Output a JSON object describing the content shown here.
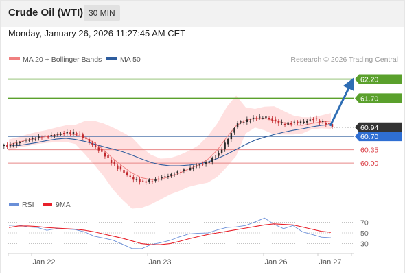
{
  "header": {
    "title": "Crude Oil (WTI)",
    "timeframe": "30 MIN"
  },
  "datetime": "Monday, January 26, 2026 11:27:45 AM CET",
  "legend": {
    "bollinger": "MA 20 + Bollinger Bands",
    "ma50": "MA 50",
    "copyright": "Research © 2026 Trading Central"
  },
  "rsi_legend": {
    "rsi": "RSI",
    "ma": "9MA"
  },
  "colors": {
    "level_resistance": "#5aa02c",
    "level_support": "#e88787",
    "current_price": "#333333",
    "ma50": "#2e5d9e",
    "bollinger_band": "#ffd6d6",
    "ma20": "#f08080",
    "candle_up": "#2b2b2b",
    "candle_down": "#c0282d",
    "rsi": "#6a8fd8",
    "rsi_ma": "#e8202a",
    "arrow": "#2e6db4"
  },
  "chart_data": [
    {
      "type": "candlestick",
      "x_labels": [
        "Jan 22",
        "Jan 23",
        "Jan 26",
        "Jan 27"
      ],
      "y_range": [
        59.25,
        62.55
      ],
      "levels": [
        {
          "value": 62.2,
          "label": "62.20",
          "kind": "resistance"
        },
        {
          "value": 61.7,
          "label": "61.70",
          "kind": "resistance"
        },
        {
          "value": 60.94,
          "label": "60.94",
          "kind": "current"
        },
        {
          "value": 60.7,
          "label": "60.70",
          "kind": "support-major"
        },
        {
          "value": 60.35,
          "label": "60.35",
          "kind": "support"
        },
        {
          "value": 60.0,
          "label": "60.00",
          "kind": "support"
        }
      ],
      "series": [
        {
          "name": "MA 20 + Bollinger Bands",
          "values": [
            60.48,
            60.55,
            60.61,
            60.66,
            60.7,
            60.74,
            60.77,
            60.75,
            60.67,
            60.54,
            60.35,
            60.12,
            59.92,
            59.74,
            59.62,
            59.57,
            59.58,
            59.65,
            59.74,
            59.85,
            59.95,
            60.1,
            60.34,
            60.68,
            60.98,
            61.12,
            61.17,
            61.17,
            61.12,
            61.06,
            61.0,
            60.99,
            61.04,
            61.08,
            61.1
          ]
        },
        {
          "name": "MA 50",
          "values": [
            60.48,
            60.46,
            60.5,
            60.54,
            60.59,
            60.63,
            60.65,
            60.62,
            60.57,
            60.5,
            60.43,
            60.37,
            60.3,
            60.21,
            60.11,
            60.02,
            59.96,
            59.93,
            59.93,
            59.95,
            59.98,
            60.03,
            60.12,
            60.23,
            60.36,
            60.49,
            60.6,
            60.68,
            60.75,
            60.81,
            60.86,
            60.9,
            60.95,
            60.99,
            61.01
          ]
        }
      ],
      "bollinger_upper": [
        60.62,
        60.68,
        60.76,
        60.82,
        60.87,
        60.93,
        60.99,
        61.0,
        61.1,
        61.11,
        61.04,
        60.93,
        60.81,
        60.67,
        60.41,
        60.22,
        60.12,
        60.13,
        60.21,
        60.32,
        60.46,
        60.71,
        61.04,
        61.47,
        61.77,
        61.46,
        61.42,
        61.48,
        61.49,
        61.37,
        61.25,
        61.2,
        61.2,
        61.25,
        61.31
      ],
      "bollinger_lower": [
        60.33,
        60.41,
        60.45,
        60.5,
        60.53,
        60.55,
        60.56,
        60.5,
        60.24,
        59.96,
        59.66,
        59.31,
        59.04,
        58.81,
        58.83,
        58.92,
        59.05,
        59.18,
        59.27,
        59.38,
        59.44,
        59.49,
        59.64,
        59.9,
        60.19,
        60.78,
        60.93,
        60.86,
        60.75,
        60.75,
        60.75,
        60.78,
        60.89,
        60.91,
        60.9
      ],
      "candles_close": [
        60.45,
        60.55,
        60.62,
        60.67,
        60.71,
        60.75,
        60.8,
        60.78,
        60.62,
        60.42,
        60.2,
        59.95,
        59.75,
        59.58,
        59.51,
        59.55,
        59.62,
        59.7,
        59.78,
        59.86,
        59.96,
        60.05,
        60.24,
        60.65,
        61.05,
        61.12,
        61.18,
        61.21,
        61.08,
        61.03,
        61.06,
        61.09,
        61.15,
        61.08,
        60.96
      ],
      "arrow": {
        "from": 60.94,
        "to": 62.2
      }
    },
    {
      "type": "line",
      "title": "RSI",
      "y_ticks": [
        70,
        50,
        30
      ],
      "y_range": [
        14,
        86
      ],
      "series": [
        {
          "name": "RSI",
          "values": [
            64,
            67,
            61,
            58,
            55,
            60,
            57,
            54,
            52,
            46,
            40,
            34,
            29,
            23,
            20,
            26,
            32,
            38,
            42,
            46,
            50,
            52,
            55,
            58,
            62,
            66,
            70,
            76,
            67,
            60,
            63,
            50,
            48,
            44,
            40
          ]
        },
        {
          "name": "9MA",
          "values": [
            60,
            63,
            63,
            62,
            60,
            59,
            58,
            57,
            55,
            52,
            48,
            44,
            40,
            35,
            30,
            28,
            28,
            30,
            34,
            39,
            43,
            47,
            50,
            53,
            56,
            59,
            62,
            65,
            67,
            66,
            65,
            61,
            57,
            53,
            51
          ]
        }
      ]
    }
  ]
}
